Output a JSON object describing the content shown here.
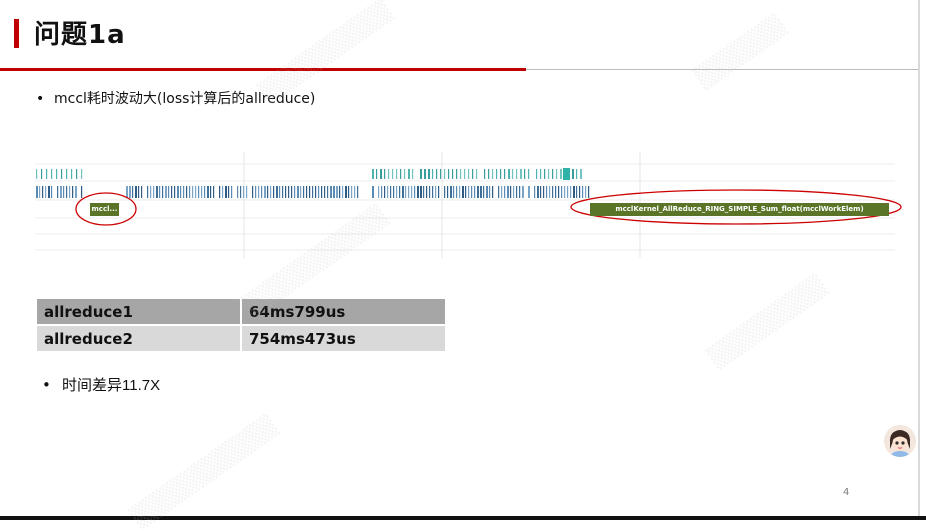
{
  "slide": {
    "title": "问题1a",
    "bullet_1": "mccl耗时波动大(loss计算后的allreduce)",
    "timeline": {
      "short_kernel_label": "mccl...",
      "long_kernel_label": "mcclKernel_AllReduce_RING_SIMPLE_Sum_float(mcclWorkElem)",
      "kernel_color": "#5a7527",
      "highlight_color": "#cc0000"
    },
    "table": {
      "rows": [
        {
          "name": "allreduce1",
          "time": "64ms799us"
        },
        {
          "name": "allreduce2",
          "time": "754ms473us"
        }
      ]
    },
    "bullet_2_prefix": "时间差异",
    "bullet_2_value": "11.7X",
    "page_number": "4"
  }
}
